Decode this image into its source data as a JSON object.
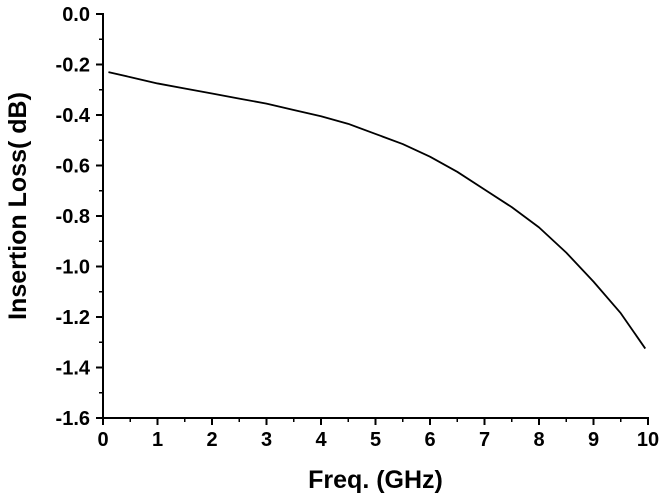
{
  "chart_data": {
    "type": "line",
    "title": "",
    "xlabel": "Freq. (GHz)",
    "ylabel": "Insertion Loss( dB)",
    "xlim": [
      0,
      10
    ],
    "ylim": [
      -1.6,
      0.0
    ],
    "x_ticks": [
      0,
      1,
      2,
      3,
      4,
      5,
      6,
      7,
      8,
      9,
      10
    ],
    "x_tick_labels": [
      "0",
      "1",
      "2",
      "3",
      "4",
      "5",
      "6",
      "7",
      "8",
      "9",
      "10"
    ],
    "y_ticks": [
      0.0,
      -0.2,
      -0.4,
      -0.6,
      -0.8,
      -1.0,
      -1.2,
      -1.4,
      -1.6
    ],
    "y_tick_labels": [
      "0.0",
      "-0.2",
      "-0.4",
      "-0.6",
      "-0.8",
      "-1.0",
      "-1.2",
      "-1.4",
      "-1.6"
    ],
    "grid": false,
    "line_color": "#000000",
    "series": [
      {
        "x": [
          0.1,
          0.5,
          1,
          1.5,
          2,
          2.5,
          3,
          3.5,
          4,
          4.5,
          5,
          5.5,
          6,
          6.5,
          7,
          7.5,
          8,
          8.5,
          9,
          9.5,
          9.95
        ],
        "values": [
          -0.23,
          -0.25,
          -0.275,
          -0.295,
          -0.315,
          -0.335,
          -0.355,
          -0.38,
          -0.405,
          -0.435,
          -0.475,
          -0.515,
          -0.565,
          -0.625,
          -0.695,
          -0.765,
          -0.845,
          -0.945,
          -1.06,
          -1.185,
          -1.325
        ]
      }
    ]
  }
}
